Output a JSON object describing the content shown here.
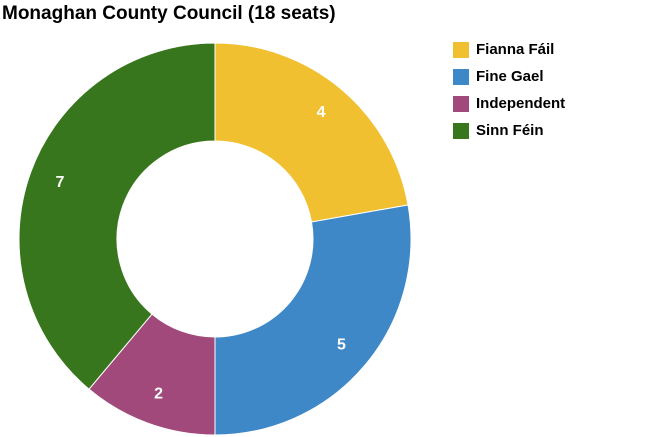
{
  "chart_data": {
    "type": "donut",
    "title": "Monaghan County Council (18 seats)",
    "categories": [
      "Fianna Fáil",
      "Fine Gael",
      "Independent",
      "Sinn Féin"
    ],
    "values": [
      4,
      5,
      2,
      7
    ],
    "colors": [
      "#f0c030",
      "#3f88c8",
      "#a0497a",
      "#38761d"
    ],
    "legend": "right"
  }
}
